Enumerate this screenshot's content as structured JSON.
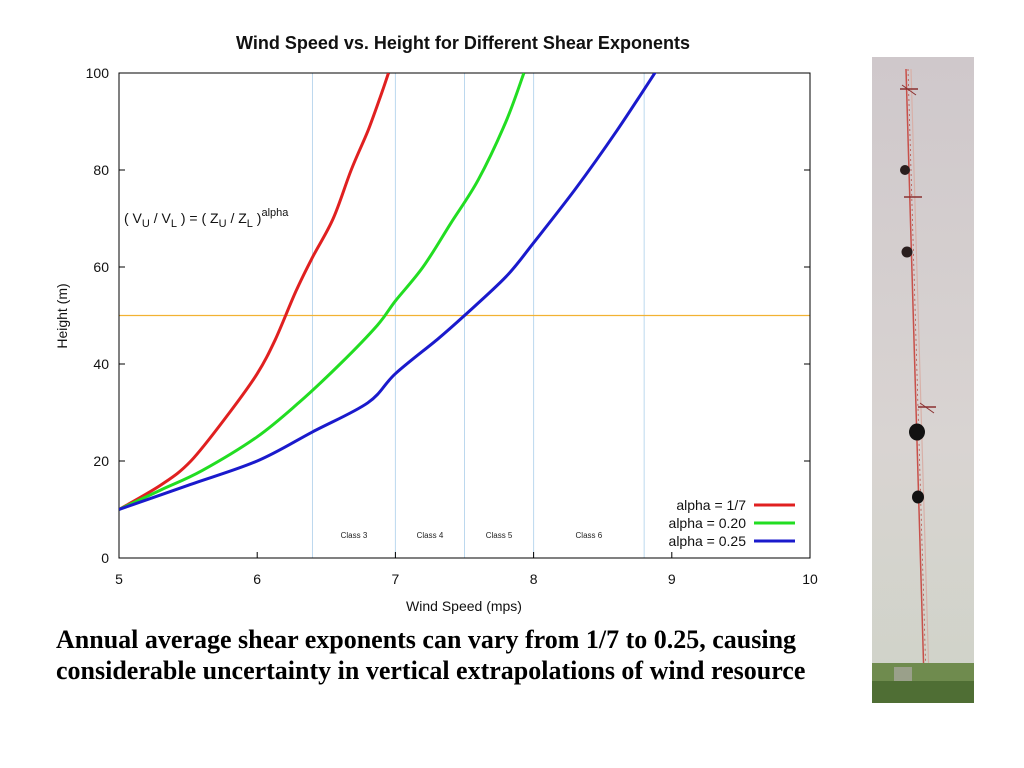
{
  "chart_data": {
    "type": "line",
    "title": "Wind Speed vs. Height for Different Shear Exponents",
    "xlabel": "Wind Speed (mps)",
    "ylabel": "Height (m)",
    "xlim": [
      5,
      10
    ],
    "ylim": [
      0,
      100
    ],
    "xticks": [
      5,
      6,
      7,
      8,
      9,
      10
    ],
    "yticks": [
      0,
      20,
      40,
      60,
      80,
      100
    ],
    "grid": false,
    "legend_position": "bottom-right",
    "annotation": {
      "base": "( V",
      "sub1": "U",
      "mid1": " / V",
      "sub2": "L",
      "mid2": " ) = ( Z",
      "sub3": "U",
      "mid3": " / Z",
      "sub4": "L",
      "mid4": " )",
      "sup": "alpha"
    },
    "reference_line": {
      "y": 50,
      "color": "#f2b233"
    },
    "class_boundaries": [
      6.4,
      7.0,
      7.5,
      8.0,
      8.8
    ],
    "class_labels": [
      {
        "label": "Class 3",
        "x": 6.7
      },
      {
        "label": "Class 4",
        "x": 7.25
      },
      {
        "label": "Class 5",
        "x": 7.75
      },
      {
        "label": "Class 6",
        "x": 8.4
      }
    ],
    "series": [
      {
        "name": "alpha = 1/7",
        "color": "#e02020",
        "x": [
          5.0,
          5.3,
          5.52,
          5.8,
          6.0,
          6.13,
          6.28,
          6.4,
          6.55,
          6.68,
          6.8,
          6.89,
          6.95
        ],
        "y": [
          10,
          15,
          20,
          30,
          38,
          45,
          55,
          62,
          70,
          80,
          88,
          95,
          100
        ]
      },
      {
        "name": "alpha = 0.20",
        "color": "#22dd22",
        "x": [
          5.0,
          5.3,
          5.6,
          6.0,
          6.3,
          6.6,
          6.87,
          7.0,
          7.2,
          7.4,
          7.6,
          7.8,
          7.93
        ],
        "y": [
          10,
          14,
          18,
          25,
          32,
          40,
          48,
          53,
          60,
          69,
          78,
          90,
          100
        ]
      },
      {
        "name": "alpha = 0.25",
        "color": "#1a1acc",
        "x": [
          5.0,
          5.5,
          6.0,
          6.4,
          6.8,
          7.0,
          7.3,
          7.5,
          7.8,
          8.0,
          8.3,
          8.6,
          8.9
        ],
        "y": [
          10,
          15,
          20,
          26,
          32,
          38,
          45,
          50,
          58,
          65,
          76,
          88,
          101
        ]
      }
    ]
  },
  "caption": {
    "text": "Annual average shear exponents can vary from 1/7 to 0.25, causing considerable uncertainty in vertical extrapolations of wind resource"
  }
}
